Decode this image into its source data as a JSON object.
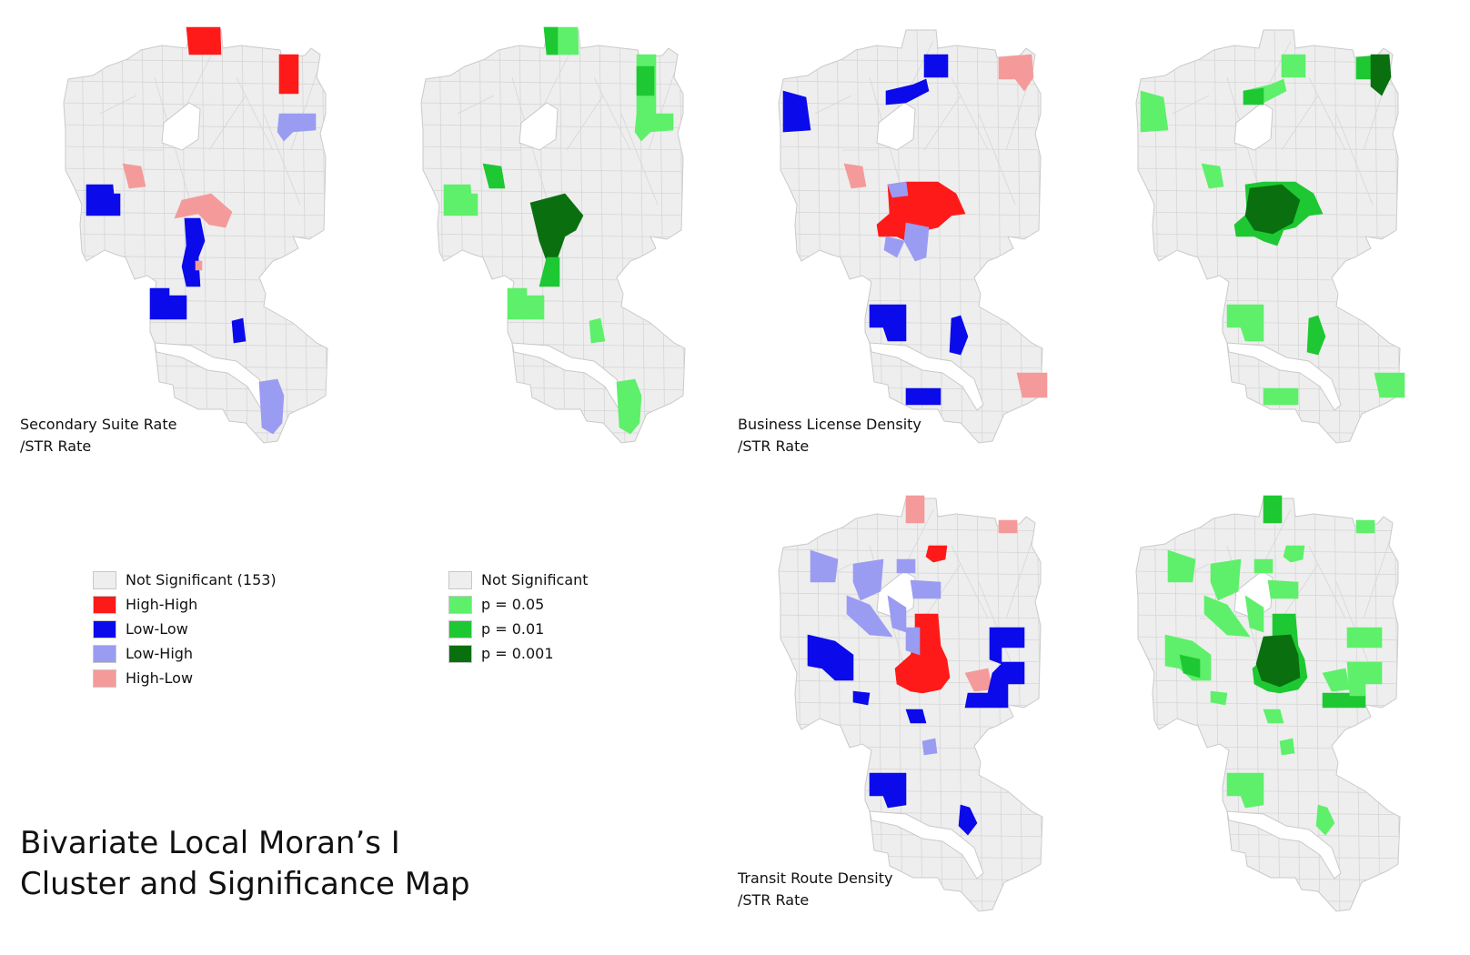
{
  "colors": {
    "not_significant": "#eeeeee",
    "outline": "#c9c9c9",
    "high_high": "#ff1a1a",
    "low_low": "#0a0aeb",
    "low_high": "#9a9cf2",
    "high_low": "#f59a9a",
    "p005": "#5ef06a",
    "p001": "#1ec832",
    "p0001": "#0a700f"
  },
  "captions": {
    "secondary_suite": [
      "Secondary Suite Rate",
      "/STR Rate"
    ],
    "business_license": [
      "Business License Density",
      "/STR Rate"
    ],
    "transit_route": [
      "Transit Route Density",
      "/STR Rate"
    ]
  },
  "title_lines": [
    "Bivariate Local Moran’s I",
    "Cluster and Significance Map"
  ],
  "cluster_legend": [
    {
      "label": "Not Significant (153)",
      "color_key": "not_significant"
    },
    {
      "label": "High-High",
      "color_key": "high_high"
    },
    {
      "label": "Low-Low",
      "color_key": "low_low"
    },
    {
      "label": "Low-High",
      "color_key": "low_high"
    },
    {
      "label": "High-Low",
      "color_key": "high_low"
    }
  ],
  "significance_legend": [
    {
      "label": "Not Significant",
      "color_key": "not_significant"
    },
    {
      "label": "p = 0.05",
      "color_key": "p005"
    },
    {
      "label": "p = 0.01",
      "color_key": "p001"
    },
    {
      "label": "p = 0.001",
      "color_key": "p0001"
    }
  ],
  "maps": [
    {
      "id": "suite-cluster",
      "type": "cluster",
      "caption_key": "secondary_suite"
    },
    {
      "id": "suite-significance",
      "type": "significance",
      "caption_key": "secondary_suite"
    },
    {
      "id": "business-cluster",
      "type": "cluster",
      "caption_key": "business_license"
    },
    {
      "id": "business-significance",
      "type": "significance",
      "caption_key": "business_license"
    },
    {
      "id": "transit-cluster",
      "type": "cluster",
      "caption_key": "transit_route"
    },
    {
      "id": "transit-significance",
      "type": "significance",
      "caption_key": "transit_route"
    }
  ]
}
